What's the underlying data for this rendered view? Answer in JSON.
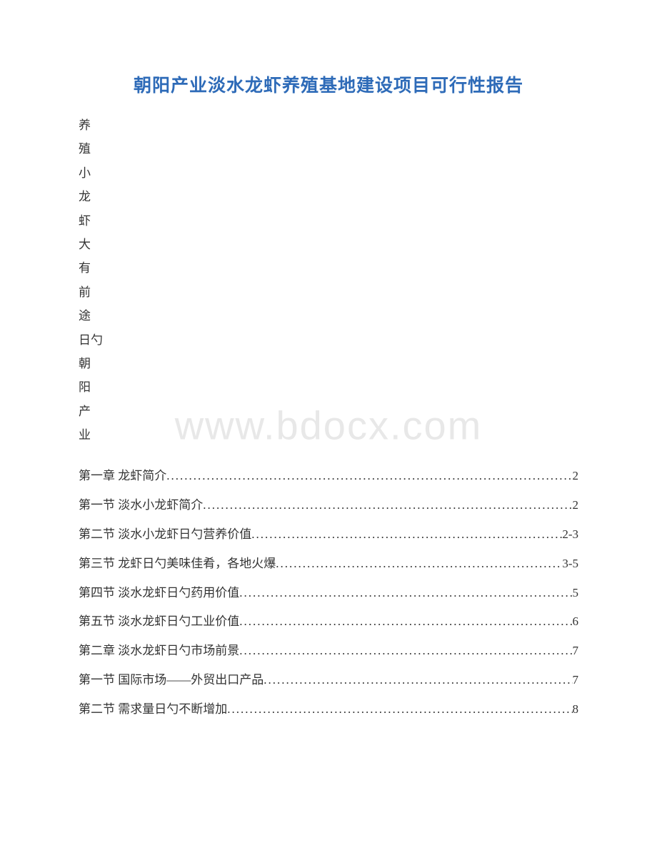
{
  "title": "朝阳产业淡水龙虾养殖基地建设项目可行性报告",
  "watermark": "www.bdocx.com",
  "vertical_chars": [
    "养",
    "殖",
    "小",
    "龙",
    "虾",
    "大",
    "有",
    "前",
    "途",
    "日勺",
    "朝",
    "阳",
    "产",
    "业"
  ],
  "toc": [
    {
      "label": "第一章 龙虾简介",
      "page": "2"
    },
    {
      "label": "第一节 淡水小龙虾简介",
      "page": "2"
    },
    {
      "label": "第二节 淡水小龙虾日勺营养价值",
      "page": "2-3"
    },
    {
      "label": "第三节 龙虾日勺美味佳肴，各地火爆",
      "page": "3-5"
    },
    {
      "label": "第四节 淡水龙虾日勺药用价值",
      "page": "5"
    },
    {
      "label": "第五节 淡水龙虾日勺工业价值",
      "page": "6"
    },
    {
      "label": "第二章 淡水龙虾日勺市场前景",
      "page": "7"
    },
    {
      "label": "第一节 国际市场——外贸出口产品",
      "page": "7"
    },
    {
      "label": "第二节 需求量日勺不断增加",
      "page": "8"
    }
  ],
  "colors": {
    "title": "#2e6bb8",
    "text": "#333333",
    "watermark": "#e8e8e8",
    "background": "#ffffff"
  },
  "fonts": {
    "title_size": 25,
    "body_size": 17,
    "watermark_size": 56
  }
}
